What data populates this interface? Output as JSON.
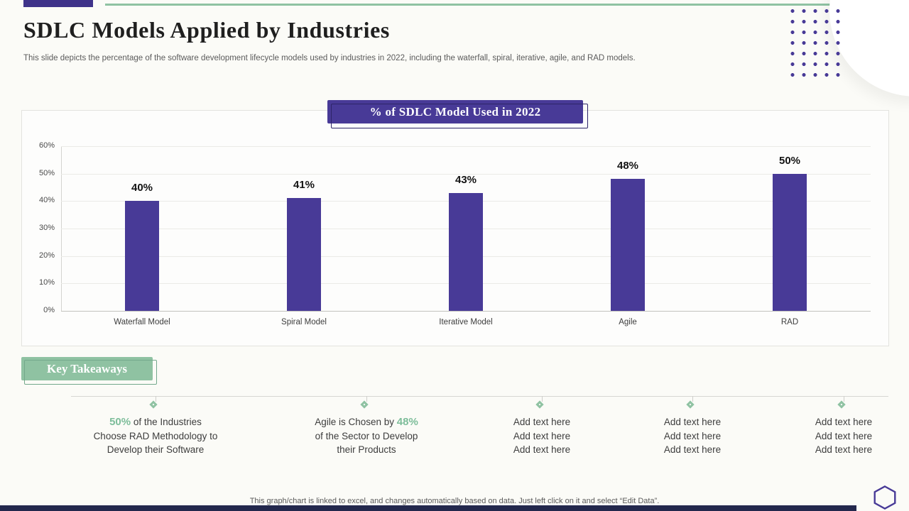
{
  "colors": {
    "accent_purple": "#483a97",
    "accent_purple_dark": "#3f338a",
    "accent_purple_darker": "#2d2468",
    "accent_green": "#8fc2a2",
    "green_highlight": "#7dbd9a",
    "bottom_bar": "#23284d"
  },
  "slide": {
    "title": "SDLC Models Applied by Industries",
    "subtitle": "This slide depicts the percentage of the software development lifecycle models used by industries in 2022, including the waterfall, spiral, iterative, agile, and RAD models.",
    "footer": "This graph/chart is linked to excel, and changes automatically based on data. Just left click on it and select “Edit Data”."
  },
  "chart_data": {
    "type": "bar",
    "title": "% of SDLC Model Used in 2022",
    "categories": [
      "Waterfall Model",
      "Spiral Model",
      "Iterative Model",
      "Agile",
      "RAD"
    ],
    "values": [
      40,
      41,
      43,
      48,
      50
    ],
    "value_labels": [
      "40%",
      "41%",
      "43%",
      "48%",
      "50%"
    ],
    "xlabel": "",
    "ylabel": "",
    "ylim": [
      0,
      60
    ],
    "ytick_labels": [
      "0%",
      "10%",
      "20%",
      "30%",
      "40%",
      "50%",
      "60%"
    ],
    "grid": true,
    "legend": false,
    "bar_color": "#483a97"
  },
  "takeaways": {
    "heading": "Key Takeaways",
    "items": [
      {
        "lines": [
          [
            {
              "t": "50%",
              "h": true
            },
            {
              "t": " of the Industries",
              "h": false
            }
          ],
          [
            {
              "t": "Choose RAD Methodology to",
              "h": false
            }
          ],
          [
            {
              "t": "Develop their Software",
              "h": false
            }
          ]
        ]
      },
      {
        "lines": [
          [
            {
              "t": "Agile is Chosen by ",
              "h": false
            },
            {
              "t": "48%",
              "h": true
            }
          ],
          [
            {
              "t": "of the Sector  to Develop",
              "h": false
            }
          ],
          [
            {
              "t": "their Products",
              "h": false
            }
          ]
        ]
      },
      {
        "lines": [
          [
            {
              "t": "Add text here",
              "h": false
            }
          ],
          [
            {
              "t": "Add text here",
              "h": false
            }
          ],
          [
            {
              "t": "Add text here",
              "h": false
            }
          ]
        ]
      },
      {
        "lines": [
          [
            {
              "t": "Add text here",
              "h": false
            }
          ],
          [
            {
              "t": "Add text here",
              "h": false
            }
          ],
          [
            {
              "t": "Add text here",
              "h": false
            }
          ]
        ]
      },
      {
        "lines": [
          [
            {
              "t": "Add text here",
              "h": false
            }
          ],
          [
            {
              "t": "Add text here",
              "h": false
            }
          ],
          [
            {
              "t": "Add text here",
              "h": false
            }
          ]
        ]
      }
    ]
  }
}
